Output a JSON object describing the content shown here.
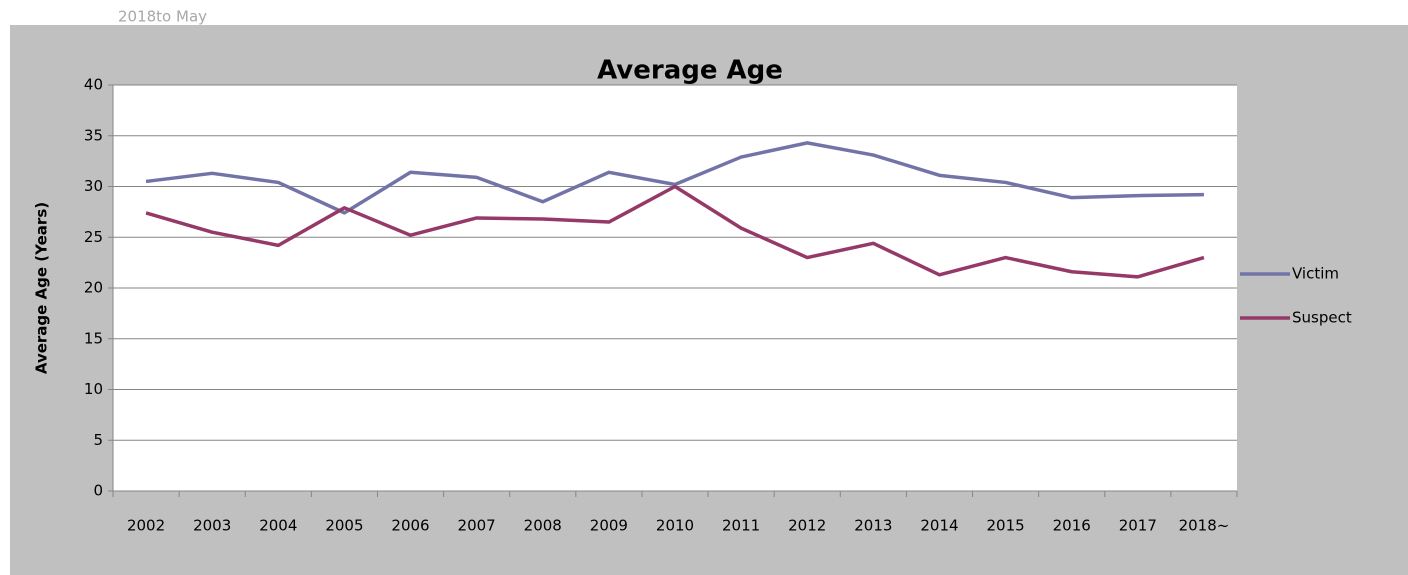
{
  "chart_data": {
    "type": "line",
    "title": "Average Age",
    "annotation": "2018to May",
    "y_label": "Average Age (Years)",
    "categories": [
      "2002",
      "2003",
      "2004",
      "2005",
      "2006",
      "2007",
      "2008",
      "2009",
      "2010",
      "2011",
      "2012",
      "2013",
      "2014",
      "2015",
      "2016",
      "2017",
      "2018~"
    ],
    "series": [
      {
        "name": "Victim",
        "color": "#7274a8",
        "values": [
          30.5,
          31.3,
          30.4,
          27.4,
          31.4,
          30.9,
          28.5,
          31.4,
          30.2,
          32.9,
          34.3,
          33.1,
          31.1,
          30.4,
          28.9,
          29.1,
          29.2
        ]
      },
      {
        "name": "Suspect",
        "color": "#953a68",
        "values": [
          27.4,
          25.5,
          24.2,
          27.9,
          25.2,
          26.9,
          26.8,
          26.5,
          30.0,
          25.9,
          23.0,
          24.4,
          21.3,
          23.0,
          21.6,
          21.1,
          23.0
        ]
      }
    ],
    "ylim": [
      0,
      40
    ],
    "yticks": [
      0,
      5,
      10,
      15,
      20,
      25,
      30,
      35,
      40
    ],
    "grid": true,
    "legend": "right"
  }
}
